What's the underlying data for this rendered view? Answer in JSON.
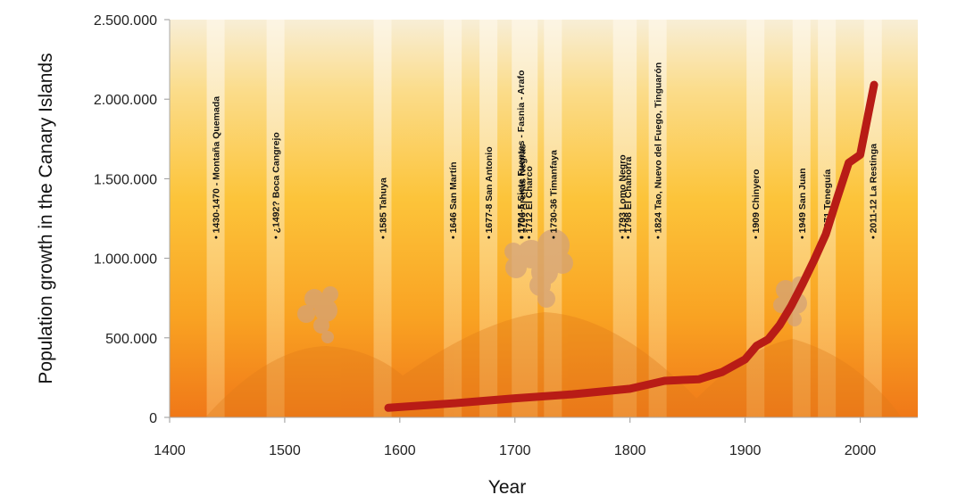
{
  "chart_data": {
    "type": "line",
    "title": "",
    "xlabel": "Year",
    "ylabel": "Population growth in the Canary Islands",
    "xlim": [
      1400,
      2050
    ],
    "ylim": [
      0,
      2500000
    ],
    "x_ticks": [
      1400,
      1500,
      1600,
      1700,
      1800,
      1900,
      2000
    ],
    "y_ticks": [
      0,
      500000,
      1000000,
      1500000,
      2000000,
      2500000
    ],
    "y_tick_labels": [
      "0",
      "500.000",
      "1.000.000",
      "1.500.000",
      "2.000.000",
      "2.500.000"
    ],
    "series": [
      {
        "x": [
          1590,
          1650,
          1700,
          1750,
          1800,
          1830,
          1860,
          1880,
          1900,
          1910,
          1920,
          1930,
          1940,
          1950,
          1960,
          1970,
          1980,
          1990,
          2000,
          2012
        ],
        "y": [
          60000,
          90000,
          120000,
          145000,
          180000,
          230000,
          240000,
          285000,
          365000,
          450000,
          490000,
          580000,
          700000,
          840000,
          990000,
          1150000,
          1380000,
          1600000,
          1650000,
          2090000
        ],
        "color": "#b81c16"
      }
    ],
    "eruptions": [
      {
        "year": 1440,
        "label": "1430-1470 - Montaña Quemada"
      },
      {
        "year": 1492,
        "label": "¿1492?  Boca Cangrejo"
      },
      {
        "year": 1585,
        "label": "1585  Tahuya"
      },
      {
        "year": 1646,
        "label": "1646  San Martín"
      },
      {
        "year": 1677,
        "label": "1677-8  San Antonio"
      },
      {
        "year": 1705,
        "label": "1704-5  Siete Fuentes - Fasnia - Arafo"
      },
      {
        "year": 1706,
        "label": "1706  Arenas Negras"
      },
      {
        "year": 1712,
        "label": "1712  El Charco"
      },
      {
        "year": 1733,
        "label": "1730-36  Timanfaya"
      },
      {
        "year": 1793,
        "label": "1793  Lomo Negro"
      },
      {
        "year": 1798,
        "label": "1798  El Chahorra"
      },
      {
        "year": 1824,
        "label": "1824  Tao, Nuevo del Fuego, Tinguarón"
      },
      {
        "year": 1909,
        "label": "1909  Chinyero"
      },
      {
        "year": 1949,
        "label": "1949  San Juan"
      },
      {
        "year": 1971,
        "label": "1971  Teneguía"
      },
      {
        "year": 2011,
        "label": "2011-12  La Restinga"
      }
    ]
  }
}
